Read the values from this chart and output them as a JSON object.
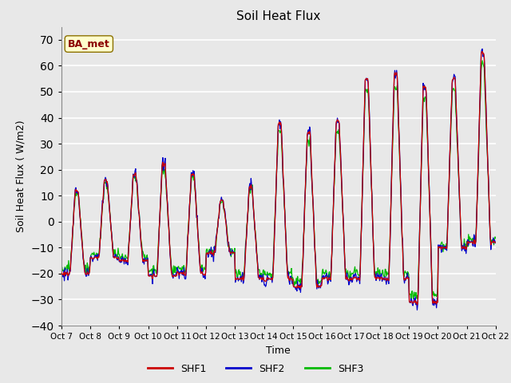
{
  "title": "Soil Heat Flux",
  "ylabel": "Soil Heat Flux (W/m2)",
  "xlabel": "Time",
  "ylim": [
    -40,
    75
  ],
  "yticks": [
    -40,
    -30,
    -20,
    -10,
    0,
    10,
    20,
    30,
    40,
    50,
    60,
    70
  ],
  "background_color": "#e8e8e8",
  "plot_bg_color": "#e8e8e8",
  "grid_color": "white",
  "line_colors": {
    "SHF1": "#cc0000",
    "SHF2": "#0000cc",
    "SHF3": "#00bb00"
  },
  "legend_label": "BA_met",
  "legend_text_color": "#8b0000",
  "legend_bg": "#ffffcc",
  "series_names": [
    "SHF1",
    "SHF2",
    "SHF3"
  ],
  "n_days": 15,
  "samples_per_day": 48,
  "day_peaks": [
    12,
    16,
    18,
    22,
    18,
    8,
    13,
    38,
    34,
    39,
    55,
    57,
    52,
    55,
    65
  ],
  "night_vals": [
    -20,
    -14,
    -15,
    -21,
    -20,
    -12,
    -22,
    -22,
    -25,
    -22,
    -22,
    -22,
    -31,
    -10,
    -8
  ],
  "xtick_labels": [
    "Oct 7",
    "Oct 8",
    "Oct 9",
    "Oct 10",
    "Oct 11",
    "Oct 12",
    "Oct 13",
    "Oct 14",
    "Oct 15",
    "Oct 16",
    "Oct 17",
    "Oct 18",
    "Oct 19",
    "Oct 20",
    "Oct 21",
    "Oct 22"
  ]
}
